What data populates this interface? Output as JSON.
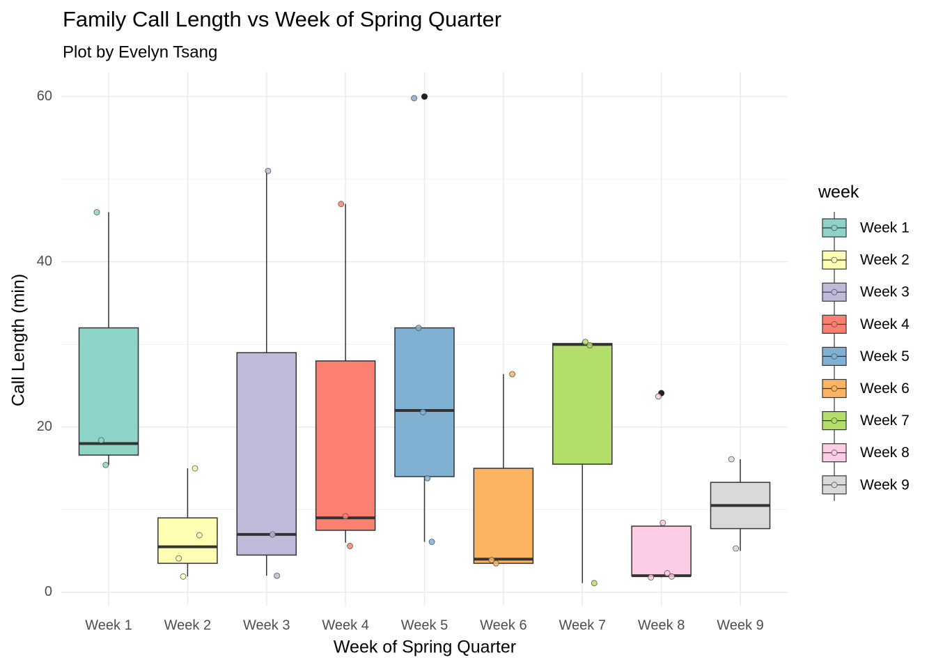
{
  "chart_data": {
    "type": "boxplot",
    "title": "Family Call Length vs Week of Spring Quarter",
    "subtitle": "Plot by Evelyn Tsang",
    "x_label": "Week of Spring Quarter",
    "y_label": "Call Length (min)",
    "legend_title": "week",
    "legend_position": "right",
    "grid": true,
    "ylim": [
      -1.7,
      63
    ],
    "yticks": [
      0,
      20,
      40,
      60
    ],
    "minor_yticks": [
      10,
      30,
      50
    ],
    "categories": [
      "Week 1",
      "Week 2",
      "Week 3",
      "Week 4",
      "Week 5",
      "Week 6",
      "Week 7",
      "Week 8",
      "Week 9"
    ],
    "series": [
      {
        "name": "Week 1",
        "color": "#8DD3C7",
        "min": 15.4,
        "q1": 16.6,
        "median": 18,
        "q3": 32,
        "max": 46,
        "outliers": [],
        "points": [
          46,
          18.4,
          15.4
        ]
      },
      {
        "name": "Week 2",
        "color": "#FFFFB3",
        "min": 1.9,
        "q1": 3.5,
        "median": 5.5,
        "q3": 9,
        "max": 15,
        "outliers": [],
        "points": [
          15,
          6.9,
          4.1,
          1.9
        ]
      },
      {
        "name": "Week 3",
        "color": "#BEBADA",
        "min": 2,
        "q1": 4.5,
        "median": 7,
        "q3": 29,
        "max": 51,
        "outliers": [],
        "points": [
          51,
          7,
          2
        ]
      },
      {
        "name": "Week 4",
        "color": "#FB8072",
        "min": 6,
        "q1": 7.5,
        "median": 9,
        "q3": 28,
        "max": 47,
        "outliers": [],
        "points": [
          47,
          9.2,
          5.6
        ]
      },
      {
        "name": "Week 5",
        "color": "#80B1D3",
        "min": 6.1,
        "q1": 14,
        "median": 22,
        "q3": 32,
        "max": 32,
        "outliers": [
          60
        ],
        "points": [
          59.8,
          32,
          21.8,
          13.8,
          6.1
        ]
      },
      {
        "name": "Week 6",
        "color": "#FDB462",
        "min": 3.5,
        "q1": 3.5,
        "median": 4,
        "q3": 15,
        "max": 26.4,
        "outliers": [],
        "points": [
          26.4,
          3.9,
          3.5
        ]
      },
      {
        "name": "Week 7",
        "color": "#B3DE69",
        "min": 1.1,
        "q1": 15.5,
        "median": 30,
        "q3": 30.1,
        "max": 30.3,
        "outliers": [],
        "points": [
          30.3,
          29.9,
          1.1
        ]
      },
      {
        "name": "Week 8",
        "color": "#FCCDE5",
        "min": 1.8,
        "q1": 2,
        "median": 2,
        "q3": 8,
        "max": 8.4,
        "outliers": [
          24.1
        ],
        "points": [
          23.7,
          8.4,
          2.3,
          1.9,
          1.8
        ]
      },
      {
        "name": "Week 9",
        "color": "#D9D9D9",
        "min": 5,
        "q1": 7.7,
        "median": 10.5,
        "q3": 13.3,
        "max": 16.1,
        "outliers": [],
        "points": [
          16.1,
          5.3
        ]
      }
    ]
  }
}
